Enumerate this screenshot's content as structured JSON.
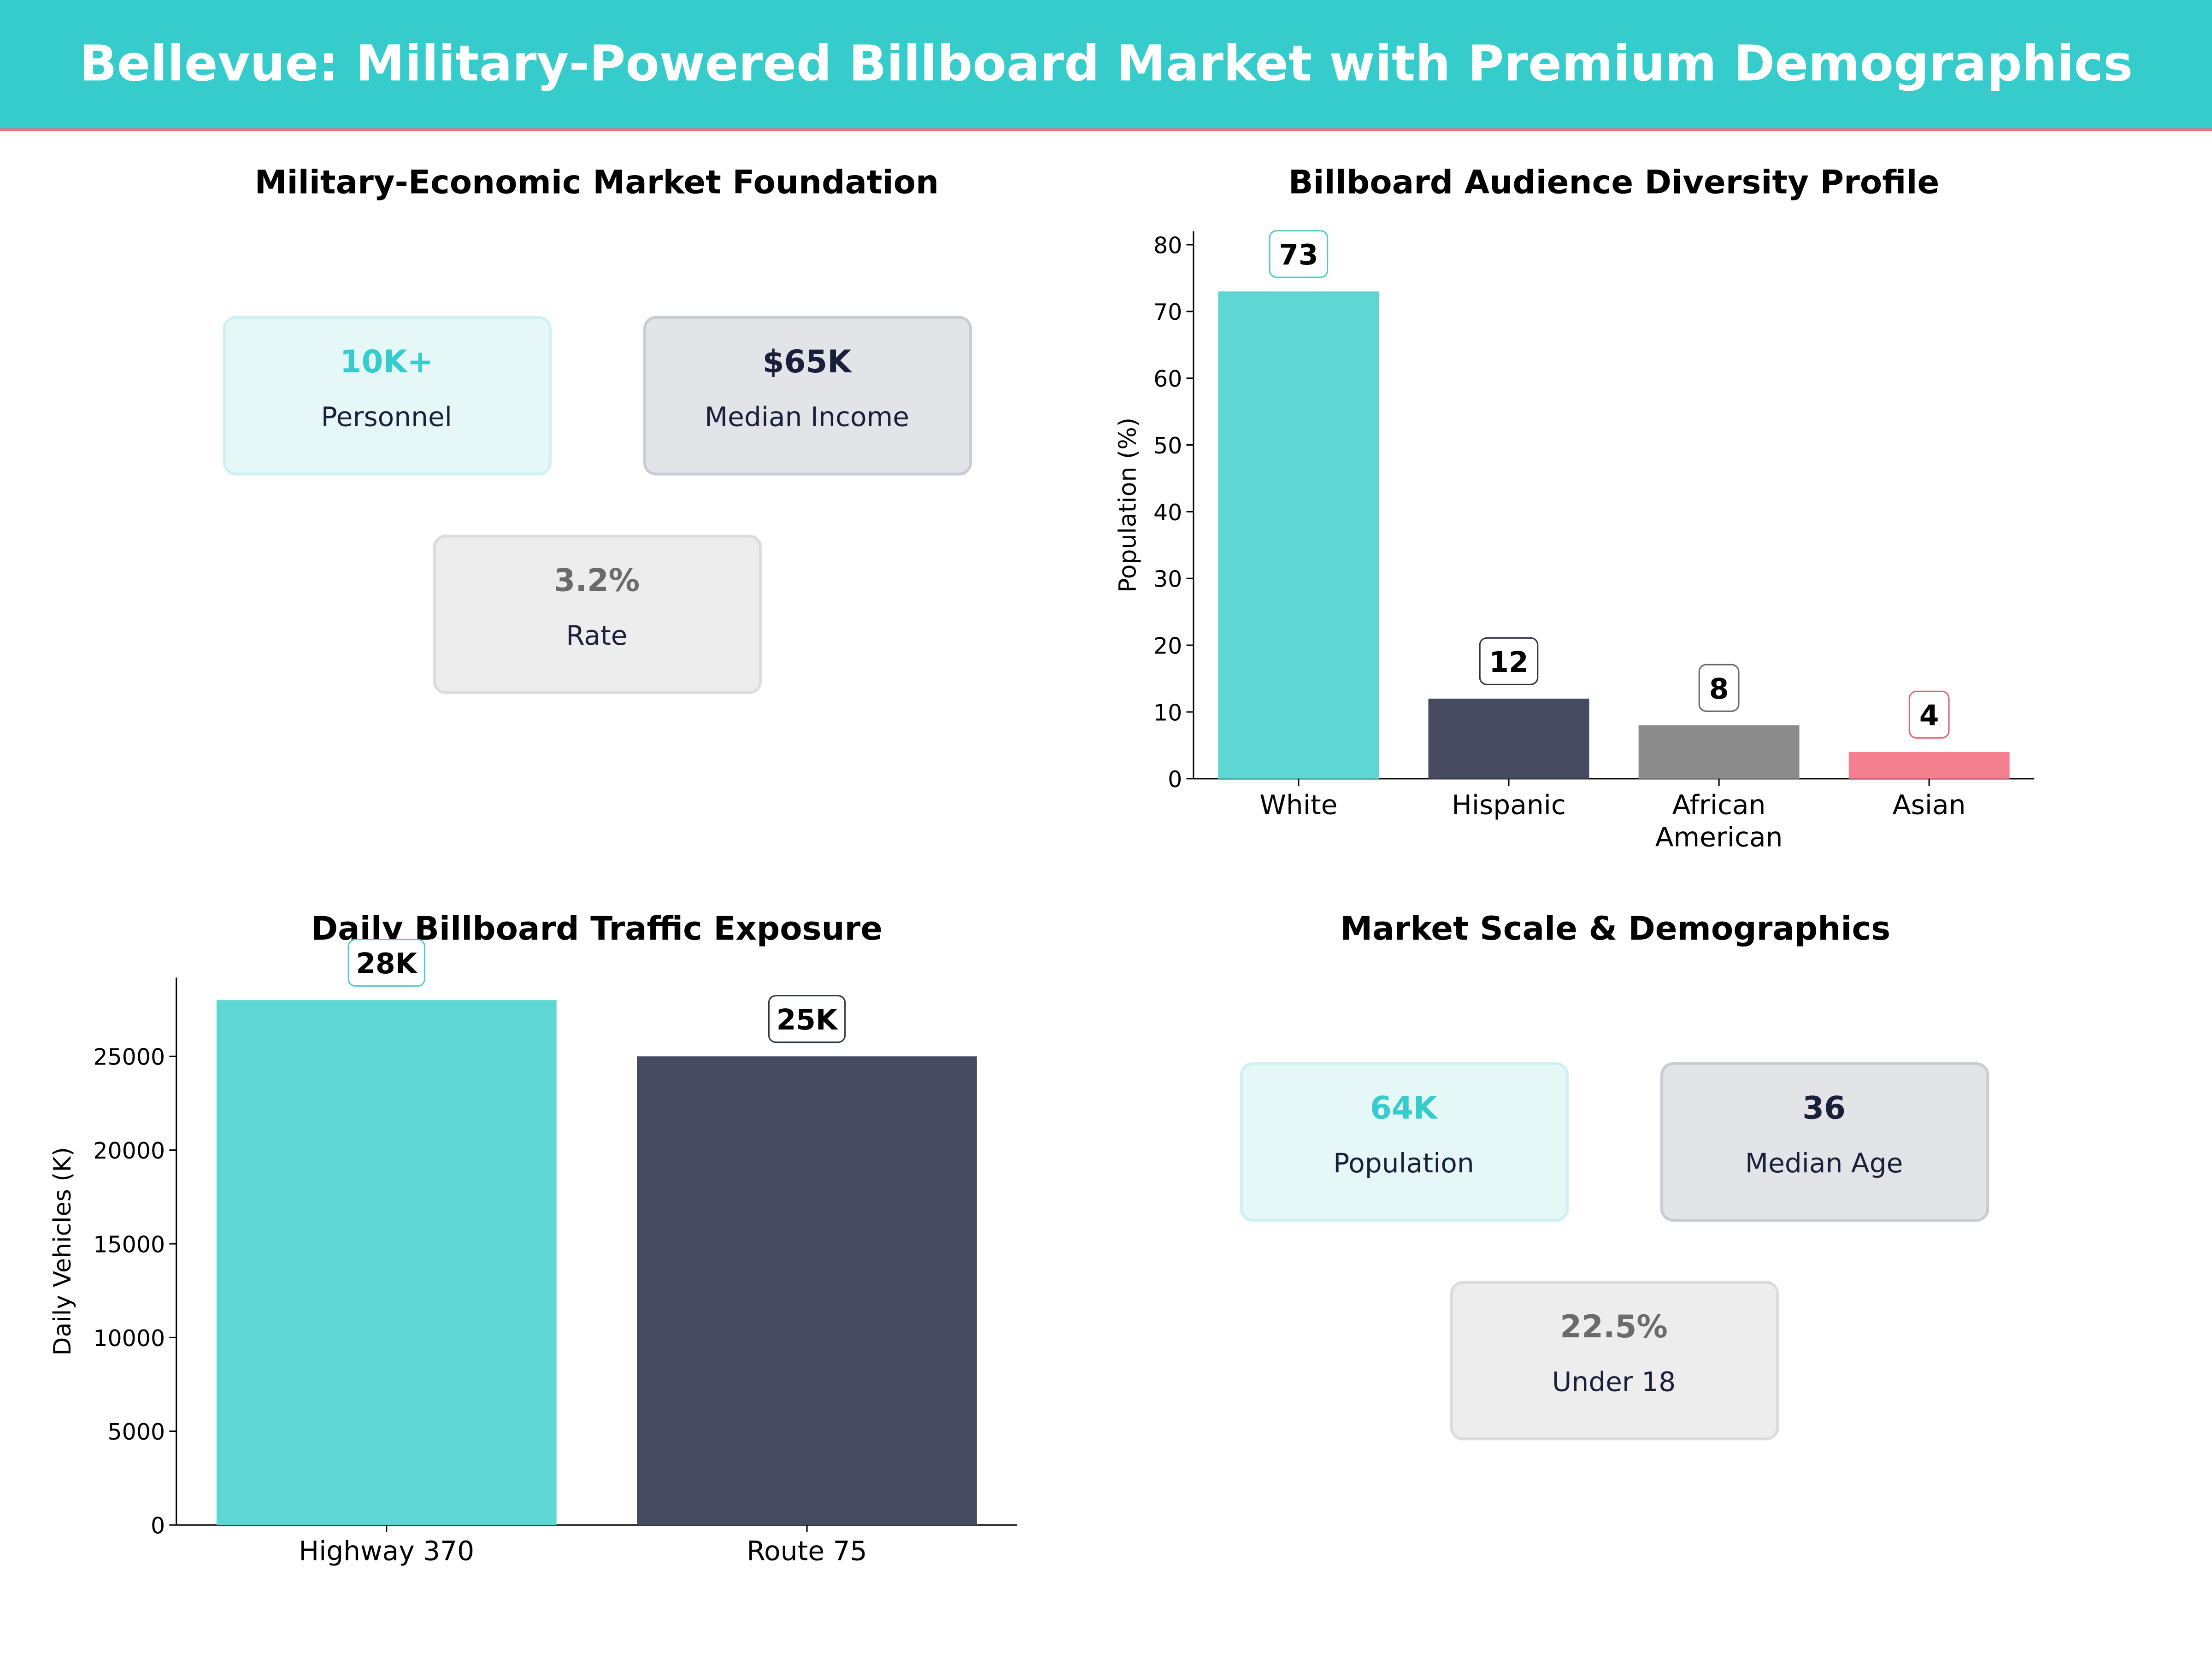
{
  "header": {
    "title": "Bellevue: Military-Powered Billboard Market with Premium Demographics",
    "bg": "#36CCCC",
    "accent_line": "#F0707F"
  },
  "panel_foundation": {
    "title": "Military-Economic Market Foundation",
    "cards": [
      {
        "value": "10K+",
        "label": "Personnel"
      },
      {
        "value": "$65K",
        "label": "Median Income"
      },
      {
        "value": "3.2%",
        "label": "Rate"
      }
    ]
  },
  "panel_scale": {
    "title": "Market Scale & Demographics",
    "cards": [
      {
        "value": "64K",
        "label": "Population"
      },
      {
        "value": "36",
        "label": "Median Age"
      },
      {
        "value": "22.5%",
        "label": "Under 18"
      }
    ]
  },
  "chart_data": [
    {
      "type": "bar",
      "title": "Billboard Audience Diversity Profile",
      "ylabel": "Population (%)",
      "xlabel": "",
      "categories": [
        "White",
        "Hispanic",
        "African\nAmerican",
        "Asian"
      ],
      "values": [
        73,
        12,
        8,
        4
      ],
      "data_labels": [
        "73",
        "12",
        "8",
        "4"
      ],
      "colors": [
        "#5DD6D4",
        "#454A60",
        "#8C8C8C",
        "#F47F8F"
      ],
      "label_borders": [
        "#4ECDC4",
        "#2D3142",
        "#666666",
        "#E85D75"
      ],
      "ylim": [
        0,
        82
      ],
      "yticks": [
        0,
        10,
        20,
        30,
        40,
        50,
        60,
        70,
        80
      ],
      "grid": false
    },
    {
      "type": "bar",
      "title": "Daily Billboard Traffic Exposure",
      "ylabel": "Daily Vehicles (K)",
      "xlabel": "",
      "categories": [
        "Highway 370",
        "Route 75"
      ],
      "values": [
        28000,
        25000
      ],
      "data_labels": [
        "28K",
        "25K"
      ],
      "colors": [
        "#5DD6D4",
        "#454A60"
      ],
      "label_borders": [
        "#4ECDC4",
        "#2D3142"
      ],
      "ylim": [
        0,
        29200
      ],
      "yticks": [
        0,
        5000,
        10000,
        15000,
        20000,
        25000
      ],
      "grid": false
    }
  ]
}
